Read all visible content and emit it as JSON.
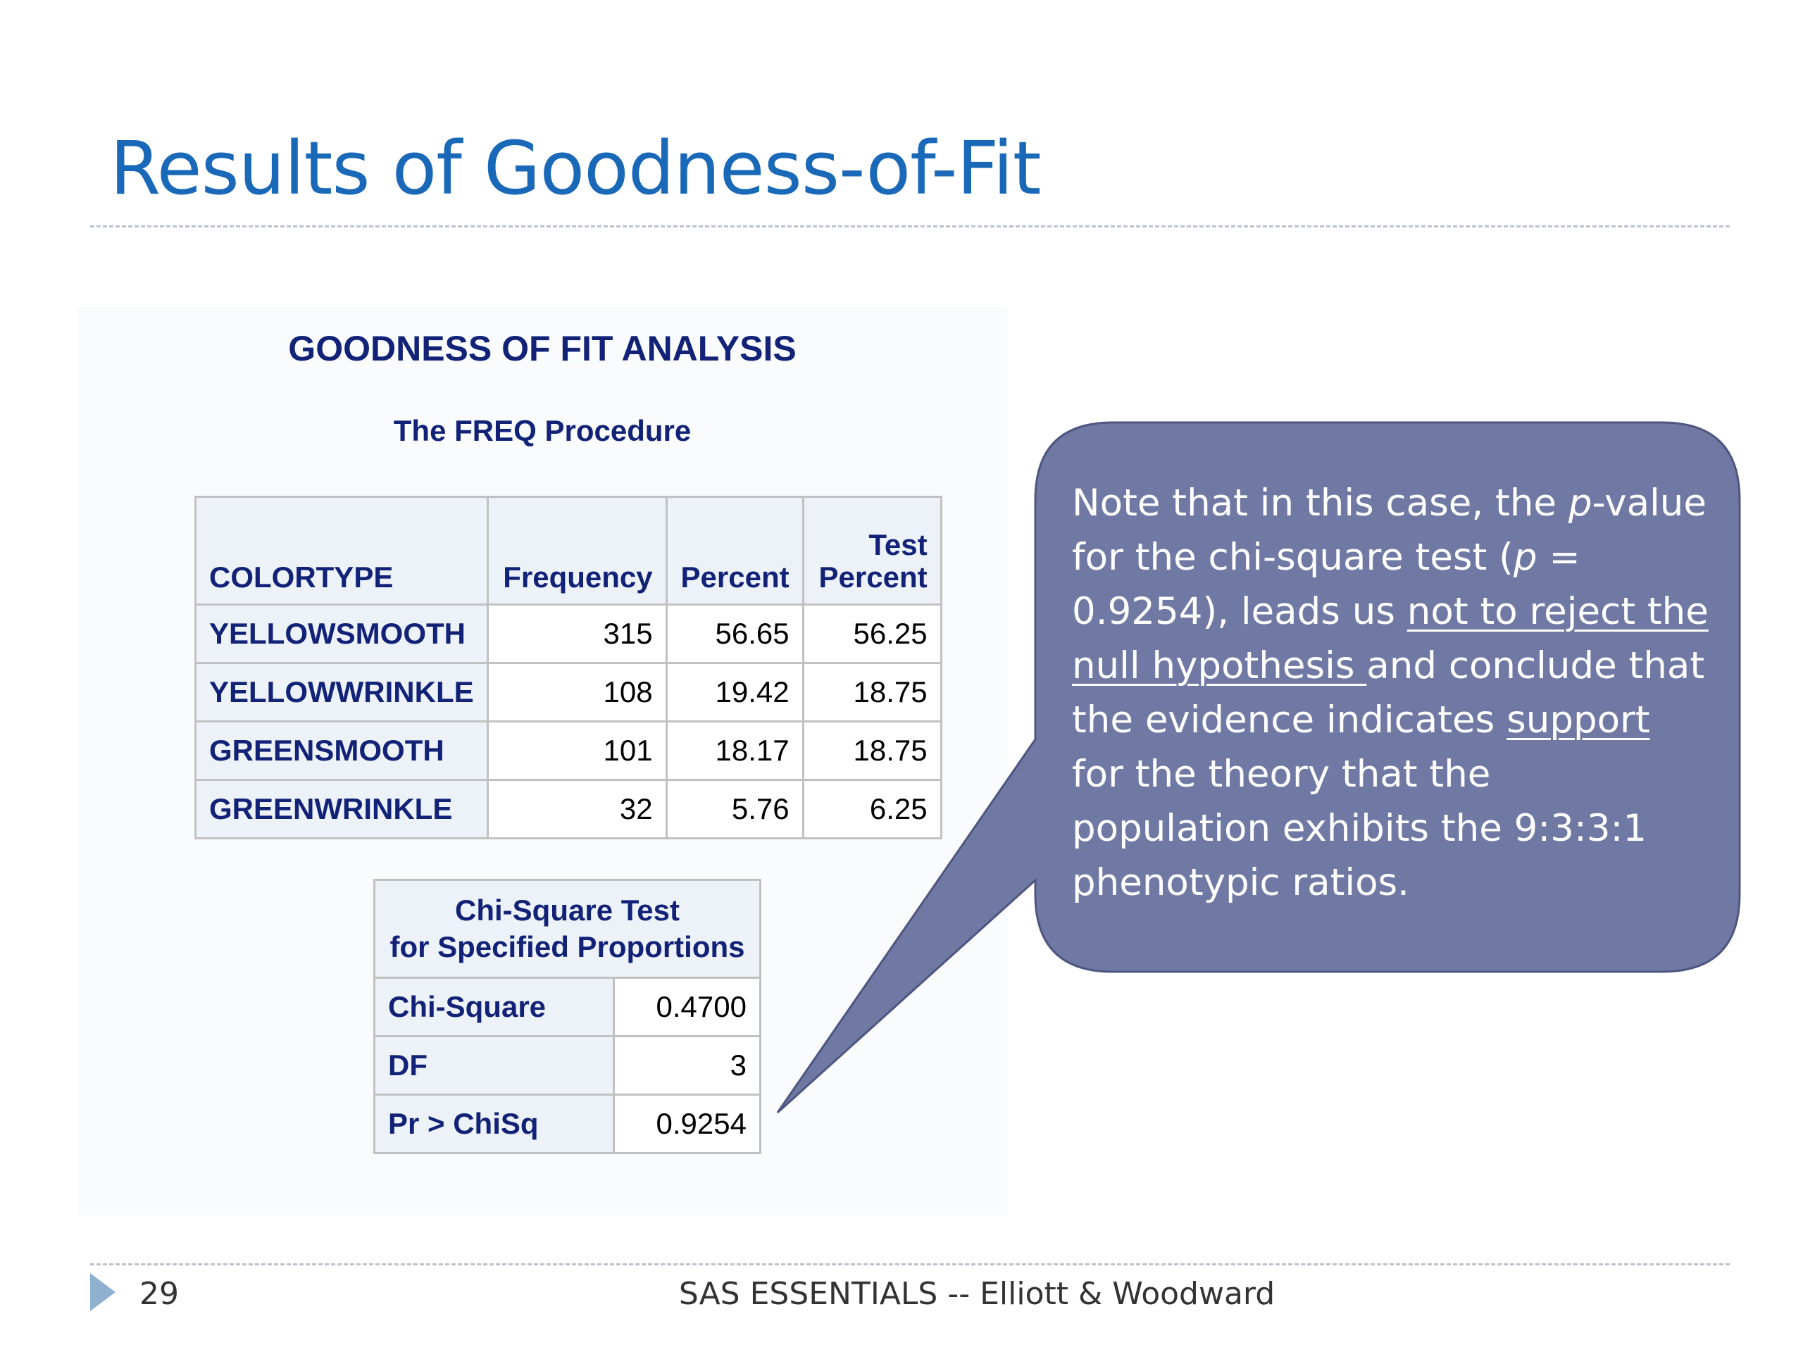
{
  "slide": {
    "title": "Results of Goodness-of-Fit",
    "page_number": "29",
    "footer": "SAS ESSENTIALS -- Elliott & Woodward"
  },
  "sas_output": {
    "title": "GOODNESS OF FIT ANALYSIS",
    "subtitle": "The FREQ Procedure",
    "freq_table": {
      "headers": [
        "COLORTYPE",
        "Frequency",
        "Percent",
        "Test Percent"
      ],
      "header_lines": {
        "test_1": "Test",
        "test_2": "Percent"
      },
      "rows": [
        {
          "colortype": "YELLOWSMOOTH",
          "frequency": "315",
          "percent": "56.65",
          "test_percent": "56.25"
        },
        {
          "colortype": "YELLOWWRINKLE",
          "frequency": "108",
          "percent": "19.42",
          "test_percent": "18.75"
        },
        {
          "colortype": "GREENSMOOTH",
          "frequency": "101",
          "percent": "18.17",
          "test_percent": "18.75"
        },
        {
          "colortype": "GREENWRINKLE",
          "frequency": "32",
          "percent": "5.76",
          "test_percent": "6.25"
        }
      ]
    },
    "chisq_table": {
      "title_line1": "Chi-Square Test",
      "title_line2": "for Specified Proportions",
      "rows": [
        {
          "label": "Chi-Square",
          "value": "0.4700"
        },
        {
          "label": "DF",
          "value": "3"
        },
        {
          "label": "Pr > ChiSq",
          "value": "0.9254"
        }
      ]
    }
  },
  "callout": {
    "lines": [
      [
        "Note that in this case, the ",
        "p",
        "-value"
      ],
      [
        "for the chi-square test  (",
        "p",
        " ="
      ],
      [
        "0.9254), leads us ",
        "not to reject the"
      ],
      [
        "null hypothesis ",
        "and conclude that"
      ],
      [
        "the evidence indicates ",
        "support"
      ],
      [
        "for the theory that the"
      ],
      [
        "population exhibits the 9:3:3:1"
      ],
      [
        "phenotypic ratios."
      ]
    ],
    "fill_color": "#6f79a3",
    "stroke_color": "#4e5680"
  }
}
